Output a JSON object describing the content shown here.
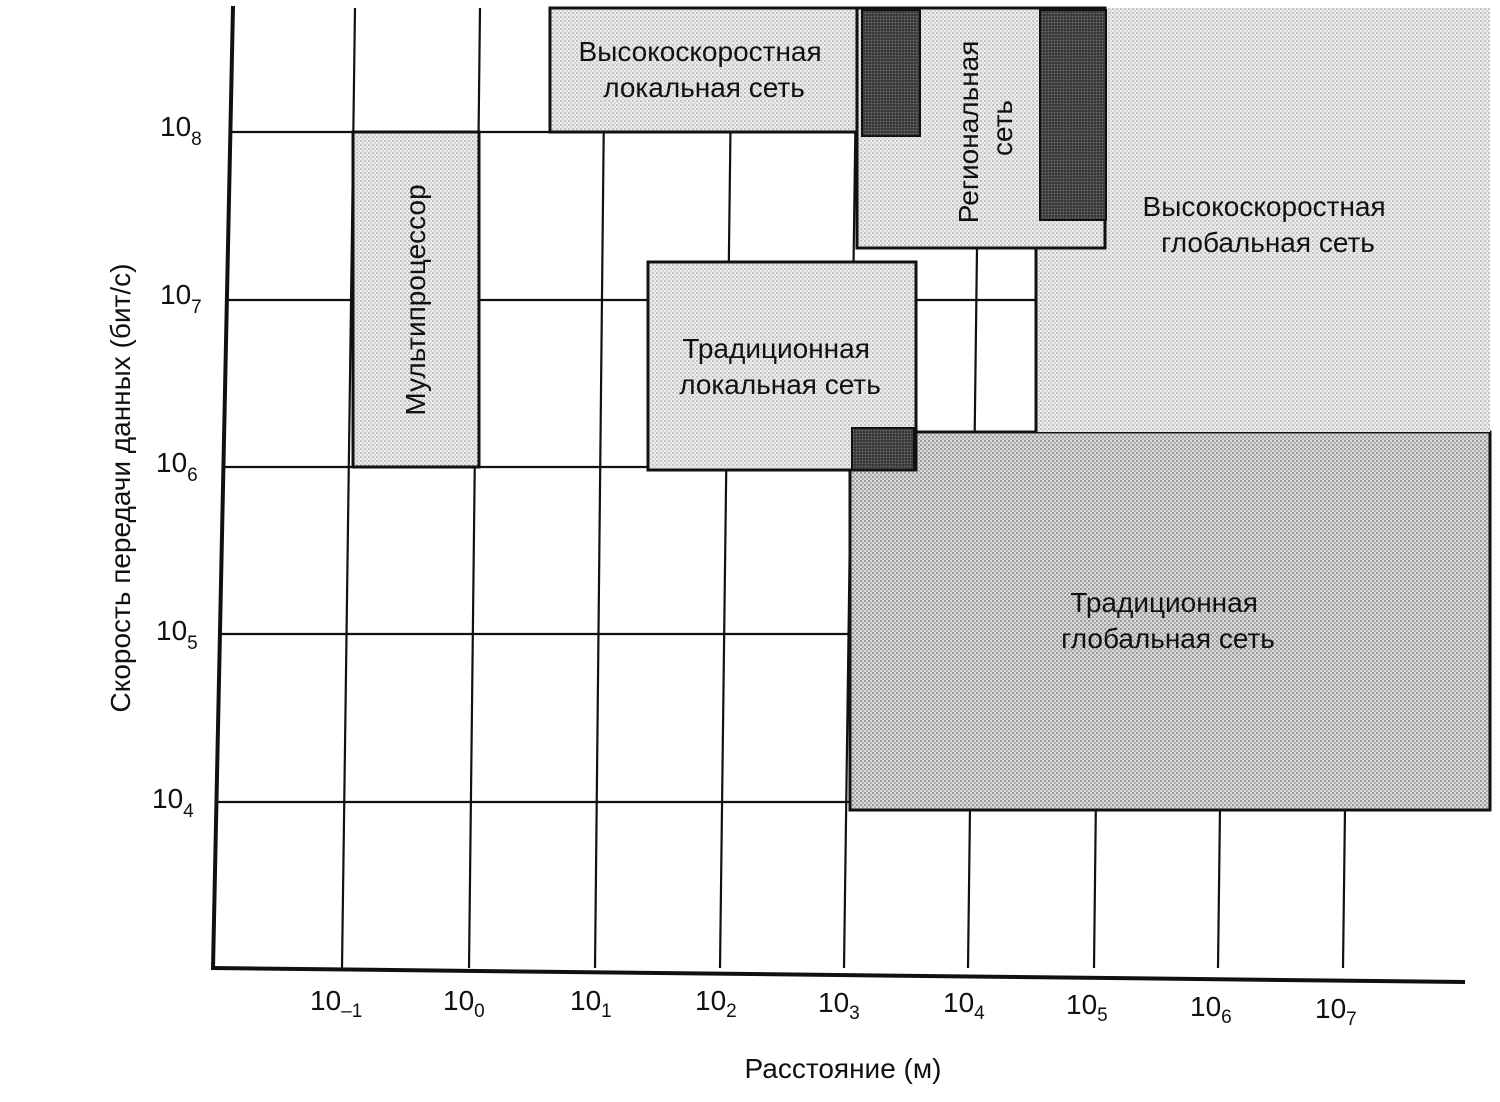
{
  "chart_data": {
    "type": "region-map",
    "xlabel": "Расстояние (м)",
    "ylabel": "Скорость передачи данных (бит/с)",
    "x_scale": "log10",
    "y_scale": "log10",
    "x_ticks": [
      {
        "base": "10",
        "exp": "–1"
      },
      {
        "base": "10",
        "exp": "0"
      },
      {
        "base": "10",
        "exp": "1"
      },
      {
        "base": "10",
        "exp": "2"
      },
      {
        "base": "10",
        "exp": "3"
      },
      {
        "base": "10",
        "exp": "4"
      },
      {
        "base": "10",
        "exp": "5"
      },
      {
        "base": "10",
        "exp": "6"
      },
      {
        "base": "10",
        "exp": "7"
      }
    ],
    "y_ticks": [
      {
        "base": "10",
        "exp": "8"
      },
      {
        "base": "10",
        "exp": "7"
      },
      {
        "base": "10",
        "exp": "6"
      },
      {
        "base": "10",
        "exp": "5"
      },
      {
        "base": "10",
        "exp": "4"
      }
    ],
    "regions": [
      {
        "id": "multiprocessor",
        "lines": [
          "Мультипроцессор"
        ],
        "x_range_log": [
          -1,
          0
        ],
        "y_range_log": [
          6,
          8
        ]
      },
      {
        "id": "hs-lan",
        "lines": [
          "Высокоскоростная",
          "локальная сеть"
        ],
        "x_range_log": [
          0.65,
          3.1
        ],
        "y_range_log": [
          8,
          8.7
        ]
      },
      {
        "id": "trad-lan",
        "lines": [
          "Традиционная",
          "локальная сеть"
        ],
        "x_range_log": [
          1.4,
          3.6
        ],
        "y_range_log": [
          6,
          7.2
        ]
      },
      {
        "id": "regional",
        "lines": [
          "Региональная",
          "сеть"
        ],
        "x_range_log": [
          3.1,
          5.1
        ],
        "y_range_log": [
          7.3,
          8.7
        ]
      },
      {
        "id": "hs-wan",
        "lines": [
          "Высокоскоростная",
          "глобальная сеть"
        ],
        "x_range_log": [
          4.6,
          8.1
        ],
        "y_range_log": [
          6.2,
          8.7
        ]
      },
      {
        "id": "trad-wan",
        "lines": [
          "Традиционная",
          "глобальная сеть"
        ],
        "x_range_log": [
          3.1,
          8.1
        ],
        "y_range_log": [
          4,
          6.2
        ]
      }
    ]
  }
}
